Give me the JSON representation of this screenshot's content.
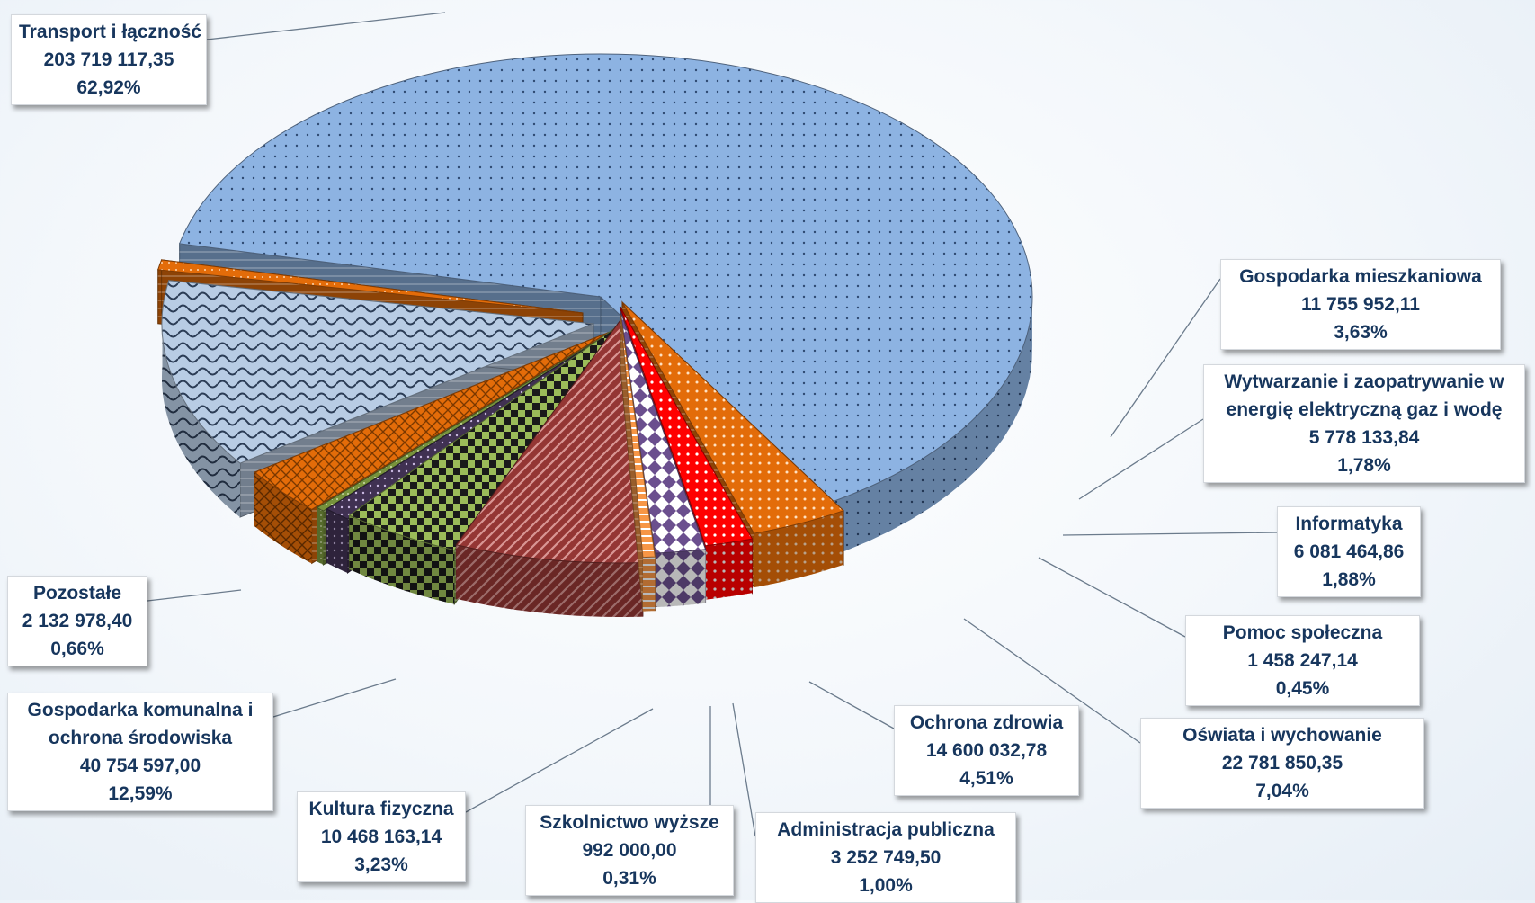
{
  "chart_data": {
    "type": "pie",
    "title": "",
    "slices": [
      {
        "name": "Transport i łączność",
        "value": "203 719 117,35",
        "percent": "62,92%",
        "color": "#8db3e2"
      },
      {
        "name": "Gospodarka mieszkaniowa",
        "value": "11 755 952,11",
        "percent": "3,63%",
        "color": "#e36c09"
      },
      {
        "name": "Wytwarzanie i zaopatrywanie w energię elektryczną gaz i wodę",
        "value": "5 778 133,84",
        "percent": "1,78%",
        "color": "#ff0000"
      },
      {
        "name": "Informatyka",
        "value": "6 081 464,86",
        "percent": "1,88%",
        "color": "#7a5c9c"
      },
      {
        "name": "Pomoc społeczna",
        "value": "1 458 247,14",
        "percent": "0,45%",
        "color": "#f79646"
      },
      {
        "name": "Oświata i wychowanie",
        "value": "22 781 850,35",
        "percent": "7,04%",
        "color": "#943634"
      },
      {
        "name": "Ochrona zdrowia",
        "value": "14 600 032,78",
        "percent": "4,51%",
        "color": "#9bbb59"
      },
      {
        "name": "Administracja publiczna",
        "value": "3 252 749,50",
        "percent": "1,00%",
        "color": "#403152"
      },
      {
        "name": "Szkolnictwo wyższe",
        "value": "992 000,00",
        "percent": "0,31%",
        "color": "#77933c"
      },
      {
        "name": "Kultura fizyczna",
        "value": "10 468 163,14",
        "percent": "3,23%",
        "color": "#e36c09"
      },
      {
        "name": "Gospodarka komunalna i ochrona środowiska",
        "value": "40 754 597,00",
        "percent": "12,59%",
        "color": "#b8cce4"
      },
      {
        "name": "Pozostałe",
        "value": "2 132 978,40",
        "percent": "0,66%",
        "color": "#e36c09"
      }
    ]
  },
  "labels": [
    {
      "lines": [
        "Transport i łączność",
        "203 719 117,35",
        "62,92%"
      ]
    },
    {
      "lines": [
        "Gospodarka mieszkaniowa",
        "11 755 952,11",
        "3,63%"
      ]
    },
    {
      "lines": [
        "Wytwarzanie i zaopatrywanie w",
        "energię elektryczną gaz i wodę",
        "5 778 133,84",
        "1,78%"
      ]
    },
    {
      "lines": [
        "Informatyka",
        "6 081 464,86",
        "1,88%"
      ]
    },
    {
      "lines": [
        "Pomoc społeczna",
        "1 458 247,14",
        "0,45%"
      ]
    },
    {
      "lines": [
        "Oświata i wychowanie",
        "22 781 850,35",
        "7,04%"
      ]
    },
    {
      "lines": [
        "Ochrona zdrowia",
        "14 600 032,78",
        "4,51%"
      ]
    },
    {
      "lines": [
        "Administracja publiczna",
        "3 252 749,50",
        "1,00%"
      ]
    },
    {
      "lines": [
        "Szkolnictwo wyższe",
        "992 000,00",
        "0,31%"
      ]
    },
    {
      "lines": [
        "Kultura fizyczna",
        "10 468 163,14",
        "3,23%"
      ]
    },
    {
      "lines": [
        "Gospodarka komunalna i",
        "ochrona środowiska",
        "40 754 597,00",
        "12,59%"
      ]
    },
    {
      "lines": [
        "Pozostałe",
        "2 132 978,40",
        "0,66%"
      ]
    }
  ]
}
